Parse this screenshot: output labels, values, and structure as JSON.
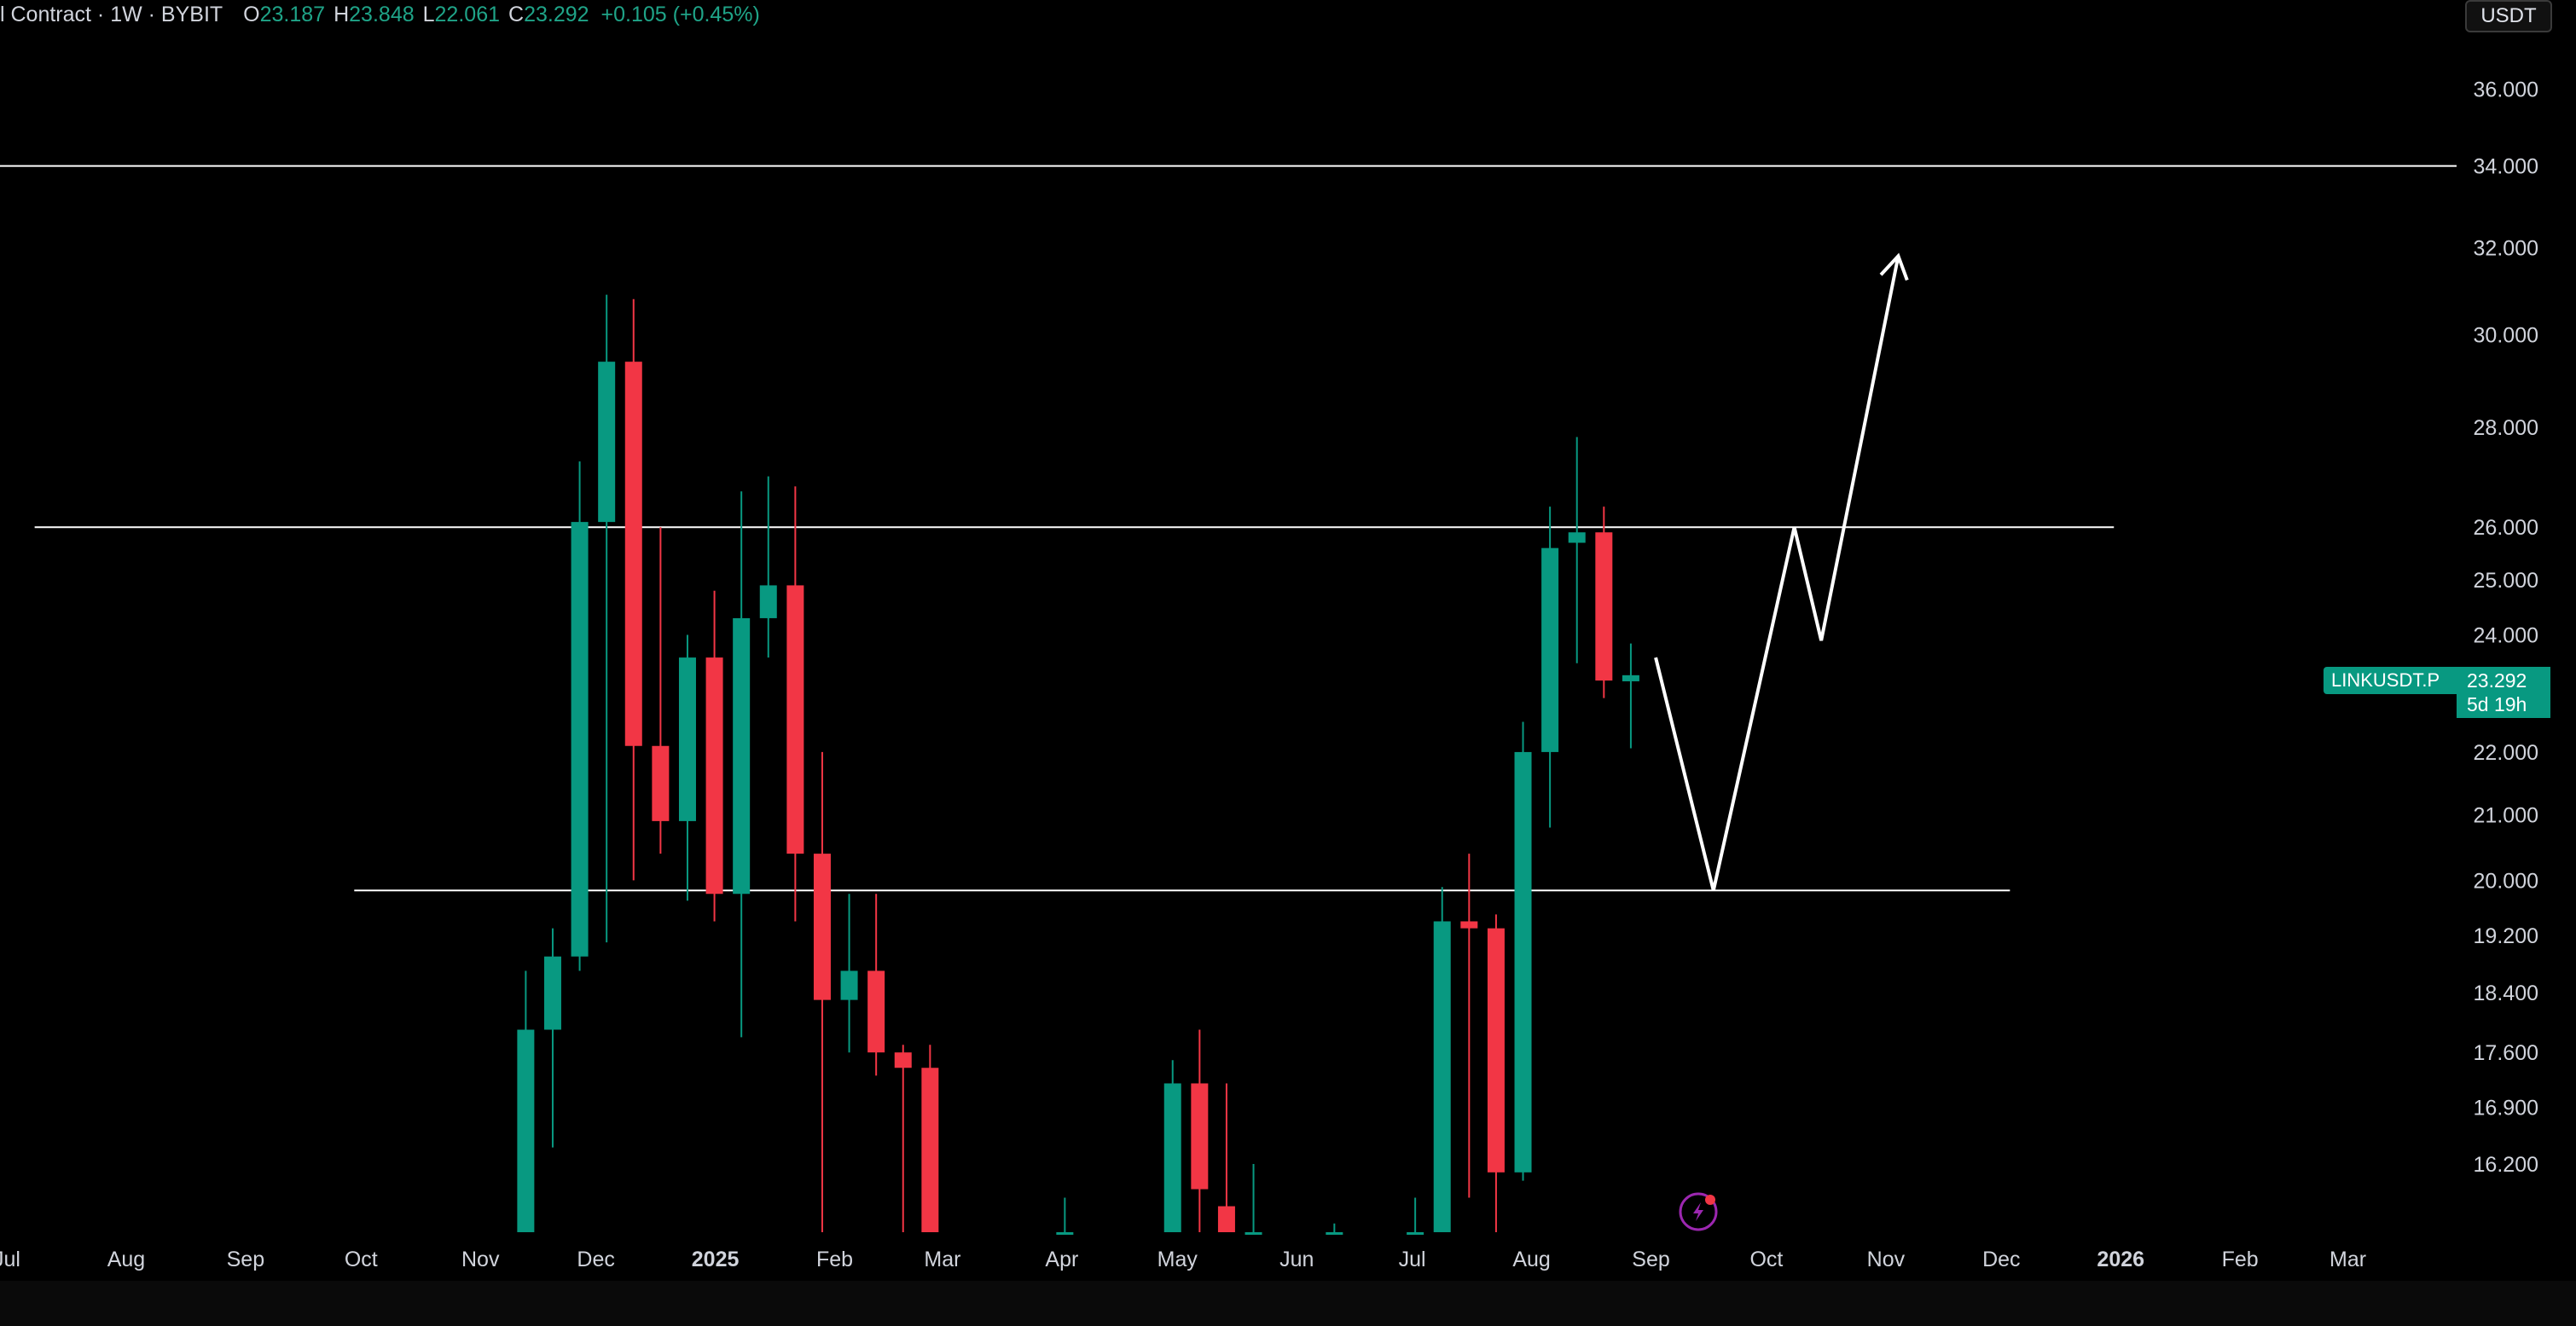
{
  "header": {
    "symbol_desc": "l Contract · 1W · BYBIT",
    "open_key": "O",
    "open_val": "23.187",
    "high_key": "H",
    "high_val": "23.848",
    "low_key": "L",
    "low_val": "22.061",
    "close_key": "C",
    "close_val": "23.292",
    "change": "+0.105 (+0.45%)"
  },
  "currency_button": "USDT",
  "last_price": {
    "symbol_label": "LINKUSDT.P",
    "price": "23.292",
    "countdown": "5d 19h"
  },
  "colors": {
    "up": "#089981",
    "down": "#f23645",
    "background": "#000000",
    "lines": "#ffffff"
  },
  "icons": {
    "lightning": "lightning-icon"
  },
  "chart_data": {
    "type": "candlestick",
    "scale": "log",
    "ylim": [
      15.4,
      37.5
    ],
    "y_ticks": [
      36,
      34,
      32,
      30,
      28,
      26,
      25,
      24,
      22,
      21,
      20,
      19.2,
      18.4,
      17.6,
      16.9,
      16.2
    ],
    "y_tick_labels": [
      "36.000",
      "34.000",
      "32.000",
      "30.000",
      "28.000",
      "26.000",
      "25.000",
      "24.000",
      "22.000",
      "21.000",
      "20.000",
      "19.200",
      "18.400",
      "17.600",
      "16.900",
      "16.200"
    ],
    "x_start": "2024-07-01",
    "x_end": "2026-03-31",
    "x_ticks": [
      {
        "label": "Jul",
        "date": "2024-07-01"
      },
      {
        "label": "Aug",
        "date": "2024-08-01"
      },
      {
        "label": "Sep",
        "date": "2024-09-01"
      },
      {
        "label": "Oct",
        "date": "2024-10-01"
      },
      {
        "label": "Nov",
        "date": "2024-11-01"
      },
      {
        "label": "Dec",
        "date": "2024-12-01"
      },
      {
        "label": "2025",
        "date": "2025-01-01",
        "bold": true
      },
      {
        "label": "Feb",
        "date": "2025-02-01"
      },
      {
        "label": "Mar",
        "date": "2025-03-01"
      },
      {
        "label": "Apr",
        "date": "2025-04-01"
      },
      {
        "label": "May",
        "date": "2025-05-01"
      },
      {
        "label": "Jun",
        "date": "2025-06-01"
      },
      {
        "label": "Jul",
        "date": "2025-07-01"
      },
      {
        "label": "Aug",
        "date": "2025-08-01"
      },
      {
        "label": "Sep",
        "date": "2025-09-01"
      },
      {
        "label": "Oct",
        "date": "2025-10-01"
      },
      {
        "label": "Nov",
        "date": "2025-11-01"
      },
      {
        "label": "Dec",
        "date": "2025-12-01"
      },
      {
        "label": "2026",
        "date": "2026-01-01",
        "bold": true
      },
      {
        "label": "Feb",
        "date": "2026-02-01"
      },
      {
        "label": "Mar",
        "date": "2026-03-01"
      }
    ],
    "candles": [
      {
        "date": "2024-11-11",
        "o": 15.4,
        "h": 18.7,
        "l": 15.4,
        "c": 17.9
      },
      {
        "date": "2024-11-18",
        "o": 17.9,
        "h": 19.3,
        "l": 16.4,
        "c": 18.9
      },
      {
        "date": "2024-11-25",
        "o": 18.9,
        "h": 27.3,
        "l": 18.7,
        "c": 26.1
      },
      {
        "date": "2024-12-02",
        "o": 26.1,
        "h": 30.9,
        "l": 19.1,
        "c": 29.4
      },
      {
        "date": "2024-12-09",
        "o": 29.4,
        "h": 30.8,
        "l": 20.0,
        "c": 22.1
      },
      {
        "date": "2024-12-16",
        "o": 22.1,
        "h": 26.0,
        "l": 20.4,
        "c": 20.9
      },
      {
        "date": "2024-12-23",
        "o": 20.9,
        "h": 24.0,
        "l": 19.7,
        "c": 23.6
      },
      {
        "date": "2024-12-30",
        "o": 23.6,
        "h": 24.8,
        "l": 19.4,
        "c": 19.8
      },
      {
        "date": "2025-01-06",
        "o": 19.8,
        "h": 26.7,
        "l": 17.8,
        "c": 24.3
      },
      {
        "date": "2025-01-13",
        "o": 24.3,
        "h": 27.0,
        "l": 23.6,
        "c": 24.9
      },
      {
        "date": "2025-01-20",
        "o": 24.9,
        "h": 26.8,
        "l": 19.4,
        "c": 20.4
      },
      {
        "date": "2025-01-27",
        "o": 20.4,
        "h": 22.0,
        "l": 15.4,
        "c": 18.3
      },
      {
        "date": "2025-02-03",
        "o": 18.3,
        "h": 19.8,
        "l": 17.6,
        "c": 18.7
      },
      {
        "date": "2025-02-10",
        "o": 18.7,
        "h": 19.8,
        "l": 17.3,
        "c": 17.6
      },
      {
        "date": "2025-02-17",
        "o": 17.6,
        "h": 17.7,
        "l": 15.4,
        "c": 17.4
      },
      {
        "date": "2025-02-24",
        "o": 17.4,
        "h": 17.7,
        "l": 15.4,
        "c": 15.4
      },
      {
        "date": "2025-03-31",
        "o": 15.4,
        "h": 15.8,
        "l": 15.4,
        "c": 15.4
      },
      {
        "date": "2025-04-28",
        "o": 15.4,
        "h": 17.5,
        "l": 15.4,
        "c": 17.2
      },
      {
        "date": "2025-05-05",
        "o": 17.2,
        "h": 17.9,
        "l": 15.4,
        "c": 15.9
      },
      {
        "date": "2025-05-12",
        "o": 15.7,
        "h": 17.2,
        "l": 15.4,
        "c": 15.4
      },
      {
        "date": "2025-05-19",
        "o": 15.4,
        "h": 16.2,
        "l": 15.4,
        "c": 15.4
      },
      {
        "date": "2025-06-09",
        "o": 15.4,
        "h": 15.5,
        "l": 15.4,
        "c": 15.4
      },
      {
        "date": "2025-06-30",
        "o": 15.4,
        "h": 15.8,
        "l": 15.4,
        "c": 15.4
      },
      {
        "date": "2025-07-07",
        "o": 15.4,
        "h": 19.9,
        "l": 15.4,
        "c": 19.4
      },
      {
        "date": "2025-07-14",
        "o": 19.4,
        "h": 20.4,
        "l": 15.8,
        "c": 19.3
      },
      {
        "date": "2025-07-21",
        "o": 19.3,
        "h": 19.5,
        "l": 15.4,
        "c": 16.1
      },
      {
        "date": "2025-07-28",
        "o": 16.1,
        "h": 22.5,
        "l": 16.0,
        "c": 22.0
      },
      {
        "date": "2025-08-04",
        "o": 22.0,
        "h": 26.4,
        "l": 20.8,
        "c": 25.6
      },
      {
        "date": "2025-08-11",
        "o": 25.7,
        "h": 27.8,
        "l": 23.5,
        "c": 25.9
      },
      {
        "date": "2025-08-18",
        "o": 25.9,
        "h": 26.4,
        "l": 22.9,
        "c": 23.2
      },
      {
        "date": "2025-08-25",
        "o": 23.187,
        "h": 23.848,
        "l": 22.061,
        "c": 23.292
      }
    ],
    "horizontal_lines": [
      {
        "price": 34.0,
        "from": "2024-07-01",
        "to": "2026-03-31"
      },
      {
        "price": 26.0,
        "from": "2024-07-10",
        "to": "2026-01-01"
      },
      {
        "price": 19.85,
        "from": "2024-10-01",
        "to": "2025-12-05"
      }
    ],
    "projection_path": [
      {
        "date": "2025-09-04",
        "price": 23.6
      },
      {
        "date": "2025-09-19",
        "price": 19.85
      },
      {
        "date": "2025-10-10",
        "price": 26.0
      },
      {
        "date": "2025-10-17",
        "price": 23.9
      },
      {
        "date": "2025-11-06",
        "price": 31.8
      }
    ]
  }
}
